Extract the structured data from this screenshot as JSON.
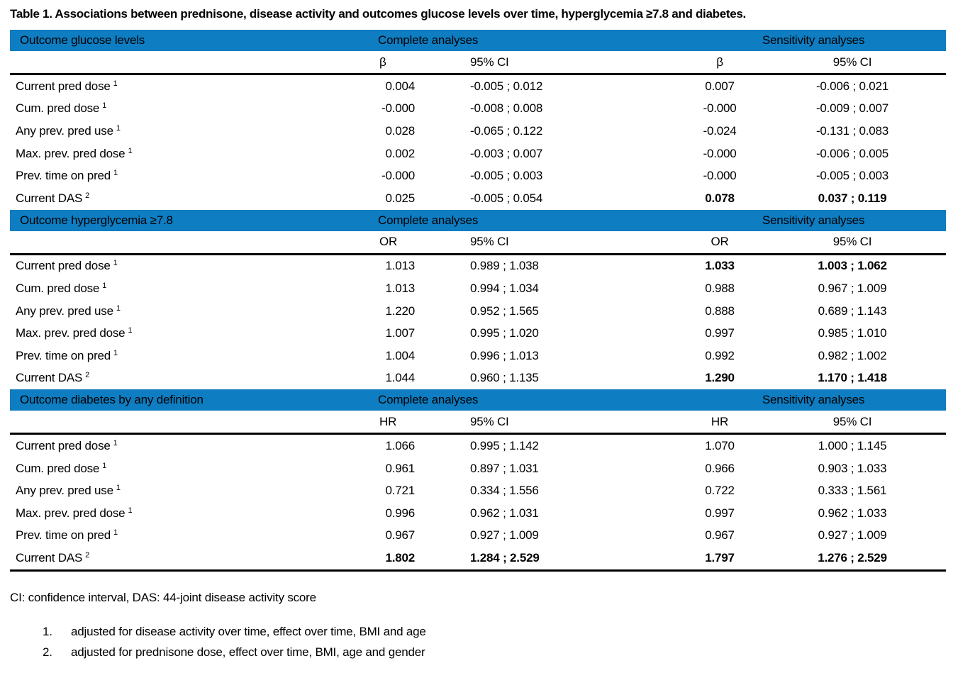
{
  "title": "Table 1. Associations between prednisone, disease activity and outcomes glucose levels over time, hyperglycemia ≥7.8 and diabetes.",
  "colors": {
    "header_bar_blue": "#0e7dc2",
    "text_black": "#000000"
  },
  "table": {
    "sections": [
      {
        "outcome_label": "Outcome glucose levels",
        "group_headers": {
          "complete": "Complete analyses",
          "sensitivity": "Sensitivity analyses"
        },
        "stat_header": "β",
        "ci_header": "95% CI",
        "rows": [
          {
            "label": "Current pred dose",
            "footnote": "1",
            "complete_stat": "0.004",
            "complete_ci": "-0.005 ; 0.012",
            "sens_stat": "0.007",
            "sens_ci": "-0.006 ; 0.021",
            "bold": []
          },
          {
            "label": "Cum. pred dose",
            "footnote": "1",
            "complete_stat": "-0.000",
            "complete_ci": "-0.008 ; 0.008",
            "sens_stat": "-0.000",
            "sens_ci": "-0.009 ; 0.007",
            "bold": []
          },
          {
            "label": "Any prev. pred use",
            "footnote": "1",
            "complete_stat": "0.028",
            "complete_ci": "-0.065 ; 0.122",
            "sens_stat": "-0.024",
            "sens_ci": "-0.131 ; 0.083",
            "bold": []
          },
          {
            "label": "Max. prev. pred dose",
            "footnote": "1",
            "complete_stat": "0.002",
            "complete_ci": "-0.003 ; 0.007",
            "sens_stat": "-0.000",
            "sens_ci": "-0.006 ; 0.005",
            "bold": []
          },
          {
            "label": "Prev. time on pred",
            "footnote": "1",
            "complete_stat": "-0.000",
            "complete_ci": "-0.005 ; 0.003",
            "sens_stat": "-0.000",
            "sens_ci": "-0.005 ; 0.003",
            "bold": []
          },
          {
            "label": "Current DAS",
            "footnote": "2",
            "complete_stat": "0.025",
            "complete_ci": "-0.005 ; 0.054",
            "sens_stat": "0.078",
            "sens_ci": "0.037 ; 0.119",
            "bold": [
              "sens_stat",
              "sens_ci"
            ]
          }
        ]
      },
      {
        "outcome_label": "Outcome hyperglycemia ≥7.8",
        "group_headers": {
          "complete": "Complete analyses",
          "sensitivity": "Sensitivity analyses"
        },
        "stat_header": "OR",
        "ci_header": "95% CI",
        "rows": [
          {
            "label": "Current pred dose",
            "footnote": "1",
            "complete_stat": "1.013",
            "complete_ci": "0.989 ; 1.038",
            "sens_stat": "1.033",
            "sens_ci": "1.003 ; 1.062",
            "bold": [
              "sens_stat",
              "sens_ci"
            ]
          },
          {
            "label": "Cum. pred dose",
            "footnote": "1",
            "complete_stat": "1.013",
            "complete_ci": "0.994 ; 1.034",
            "sens_stat": "0.988",
            "sens_ci": "0.967 ; 1.009",
            "bold": []
          },
          {
            "label": "Any prev. pred use",
            "footnote": "1",
            "complete_stat": "1.220",
            "complete_ci": "0.952 ; 1.565",
            "sens_stat": "0.888",
            "sens_ci": "0.689 ; 1.143",
            "bold": []
          },
          {
            "label": "Max. prev. pred dose",
            "footnote": "1",
            "complete_stat": "1.007",
            "complete_ci": "0.995 ; 1.020",
            "sens_stat": "0.997",
            "sens_ci": "0.985 ; 1.010",
            "bold": []
          },
          {
            "label": "Prev. time on pred",
            "footnote": "1",
            "complete_stat": "1.004",
            "complete_ci": "0.996 ; 1.013",
            "sens_stat": "0.992",
            "sens_ci": "0.982 ; 1.002",
            "bold": []
          },
          {
            "label": "Current DAS",
            "footnote": "2",
            "complete_stat": "1.044",
            "complete_ci": "0.960 ; 1.135",
            "sens_stat": "1.290",
            "sens_ci": "1.170 ; 1.418",
            "bold": [
              "sens_stat",
              "sens_ci"
            ]
          }
        ]
      },
      {
        "outcome_label": "Outcome diabetes by any definition",
        "group_headers": {
          "complete": "Complete analyses",
          "sensitivity": "Sensitivity analyses"
        },
        "stat_header": "HR",
        "ci_header": "95% CI",
        "rows": [
          {
            "label": "Current pred dose",
            "footnote": "1",
            "complete_stat": "1.066",
            "complete_ci": "0.995 ; 1.142",
            "sens_stat": "1.070",
            "sens_ci": "1.000 ; 1.145",
            "bold": []
          },
          {
            "label": "Cum. pred dose",
            "footnote": "1",
            "complete_stat": "0.961",
            "complete_ci": "0.897 ; 1.031",
            "sens_stat": "0.966",
            "sens_ci": "0.903 ; 1.033",
            "bold": []
          },
          {
            "label": "Any prev. pred use",
            "footnote": "1",
            "complete_stat": "0.721",
            "complete_ci": "0.334 ; 1.556",
            "sens_stat": "0.722",
            "sens_ci": "0.333 ; 1.561",
            "bold": []
          },
          {
            "label": "Max. prev. pred dose",
            "footnote": "1",
            "complete_stat": "0.996",
            "complete_ci": "0.962 ; 1.031",
            "sens_stat": "0.997",
            "sens_ci": "0.962 ; 1.033",
            "bold": []
          },
          {
            "label": "Prev. time on pred",
            "footnote": "1",
            "complete_stat": "0.967",
            "complete_ci": "0.927 ; 1.009",
            "sens_stat": "0.967",
            "sens_ci": "0.927 ; 1.009",
            "bold": []
          },
          {
            "label": "Current DAS",
            "footnote": "2",
            "complete_stat": "1.802",
            "complete_ci": "1.284 ; 2.529",
            "sens_stat": "1.797",
            "sens_ci": "1.276 ; 2.529",
            "bold": [
              "complete_stat",
              "complete_ci",
              "sens_stat",
              "sens_ci"
            ]
          }
        ]
      }
    ]
  },
  "footnotes": {
    "abbreviations": "CI: confidence interval, DAS: 44-joint disease activity score",
    "items": [
      {
        "number": "1.",
        "text": "adjusted for disease activity over time, effect over time, BMI and age"
      },
      {
        "number": "2.",
        "text": "adjusted for prednisone dose, effect over time, BMI, age and gender"
      }
    ]
  }
}
